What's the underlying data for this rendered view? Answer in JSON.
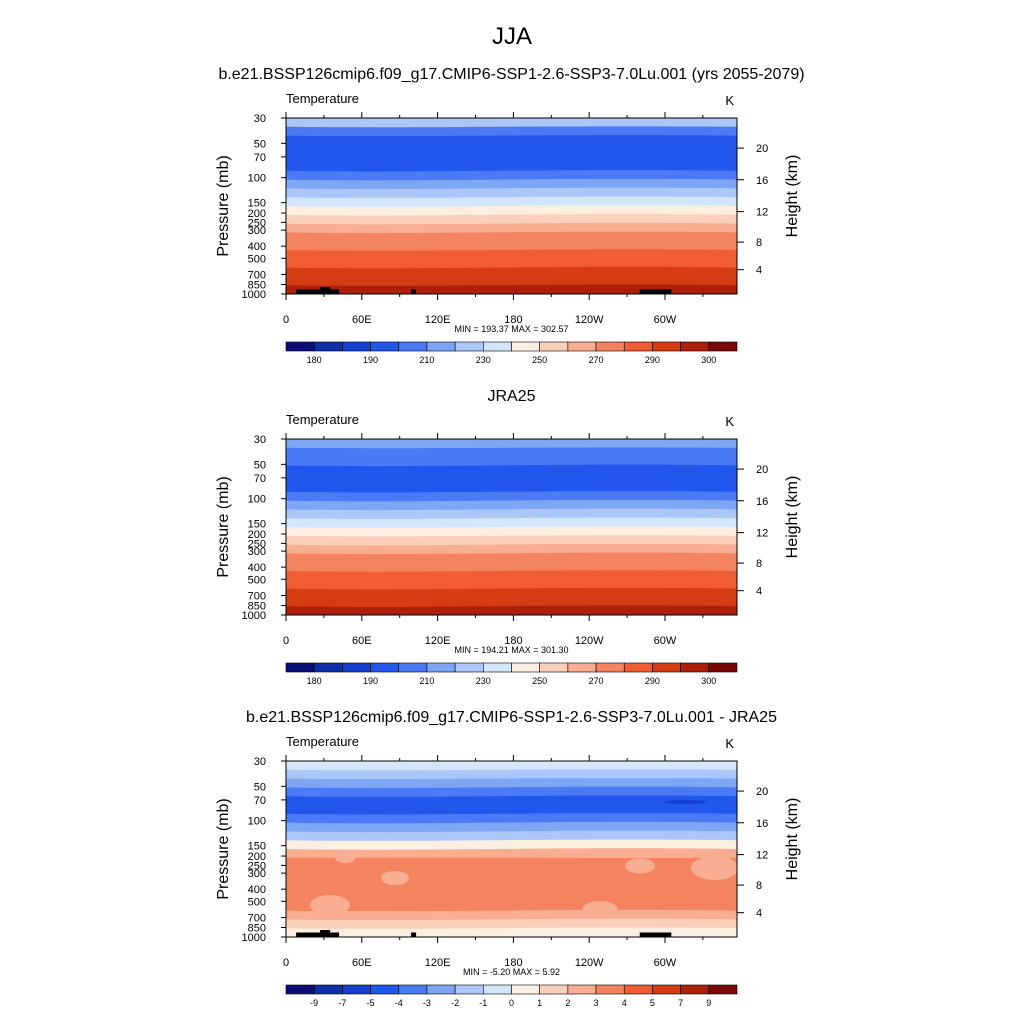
{
  "figure": {
    "title": "JJA"
  },
  "chart_data": [
    {
      "type": "heatmap",
      "title": "b.e21.BSSP126cmip6.f09_g17.CMIP6-SSP1-2.6-SSP3-7.0Lu.001 (yrs 2055-2079)",
      "variable_label": "Temperature",
      "units": "K",
      "ylabel": "Pressure (mb)",
      "ylabel_right": "Height (km)",
      "x_ticks": [
        "0",
        "60E",
        "120E",
        "180",
        "120W",
        "60W"
      ],
      "y_ticks": [
        "30",
        "50",
        "70",
        "100",
        "150",
        "200",
        "250",
        "300",
        "400",
        "500",
        "700",
        "850",
        "1000"
      ],
      "y_ticks_right": [
        "20",
        "16",
        "12",
        "8",
        "4"
      ],
      "stats": "MIN = 193.37  MAX = 302.57",
      "min": 193.37,
      "max": 302.57,
      "colorbar_labels": [
        "180",
        "190",
        "210",
        "230",
        "250",
        "270",
        "290",
        "300"
      ],
      "colors": [
        "#0a0c78",
        "#0f2fa8",
        "#163fd0",
        "#2257ee",
        "#4a7af5",
        "#7ea6f5",
        "#abc7f9",
        "#d3e6fb",
        "#fdeee2",
        "#fbd0bb",
        "#f9ad92",
        "#f4845f",
        "#f15d33",
        "#d63c12",
        "#ac1f0a",
        "#7a0606"
      ],
      "band_profile": [
        6,
        4,
        3,
        3,
        3,
        3,
        4,
        5,
        6,
        7,
        8,
        9,
        10,
        11,
        11,
        12,
        12,
        13,
        13,
        14
      ],
      "topography": true
    },
    {
      "type": "heatmap",
      "title": "JRA25",
      "variable_label": "Temperature",
      "units": "K",
      "ylabel": "Pressure (mb)",
      "ylabel_right": "Height (km)",
      "x_ticks": [
        "0",
        "60E",
        "120E",
        "180",
        "120W",
        "60W"
      ],
      "y_ticks": [
        "30",
        "50",
        "70",
        "100",
        "150",
        "200",
        "250",
        "300",
        "400",
        "500",
        "700",
        "850",
        "1000"
      ],
      "y_ticks_right": [
        "20",
        "16",
        "12",
        "8",
        "4"
      ],
      "stats": "MIN = 194.21  MAX = 301.30",
      "min": 194.21,
      "max": 301.3,
      "colorbar_labels": [
        "180",
        "190",
        "210",
        "230",
        "250",
        "270",
        "290",
        "300"
      ],
      "colors": [
        "#0a0c78",
        "#0f2fa8",
        "#163fd0",
        "#2257ee",
        "#4a7af5",
        "#7ea6f5",
        "#abc7f9",
        "#d3e6fb",
        "#fdeee2",
        "#fbd0bb",
        "#f9ad92",
        "#f4845f",
        "#f15d33",
        "#d63c12",
        "#ac1f0a",
        "#7a0606"
      ],
      "band_profile": [
        5,
        4,
        4,
        3,
        3,
        3,
        4,
        5,
        6,
        7,
        8,
        9,
        10,
        11,
        11,
        12,
        12,
        13,
        13,
        14
      ],
      "topography": false
    },
    {
      "type": "heatmap",
      "title": "b.e21.BSSP126cmip6.f09_g17.CMIP6-SSP1-2.6-SSP3-7.0Lu.001 - JRA25",
      "variable_label": "Temperature",
      "units": "K",
      "ylabel": "Pressure (mb)",
      "ylabel_right": "Height (km)",
      "x_ticks": [
        "0",
        "60E",
        "120E",
        "180",
        "120W",
        "60W"
      ],
      "y_ticks": [
        "30",
        "50",
        "70",
        "100",
        "150",
        "200",
        "250",
        "300",
        "400",
        "500",
        "700",
        "850",
        "1000"
      ],
      "y_ticks_right": [
        "20",
        "16",
        "12",
        "8",
        "4"
      ],
      "stats": "MIN =  -5.20  MAX =   5.92",
      "min": -5.2,
      "max": 5.92,
      "colorbar_labels": [
        "-9",
        "-7",
        "-5",
        "-4",
        "-3",
        "-2",
        "-1",
        "0",
        "1",
        "2",
        "3",
        "4",
        "5",
        "7",
        "9"
      ],
      "colors": [
        "#0a0c78",
        "#0f2fa8",
        "#163fd0",
        "#2257ee",
        "#4a7af5",
        "#7ea6f5",
        "#abc7f9",
        "#d3e6fb",
        "#fdeee2",
        "#fbd0bb",
        "#f9ad92",
        "#f4845f",
        "#f15d33",
        "#d63c12",
        "#ac1f0a",
        "#7a0606"
      ],
      "band_profile": [
        7,
        6,
        5,
        4,
        3,
        3,
        4,
        5,
        6,
        8,
        10,
        11,
        11,
        11,
        11,
        11,
        11,
        10,
        9,
        8
      ],
      "topography": true
    }
  ]
}
